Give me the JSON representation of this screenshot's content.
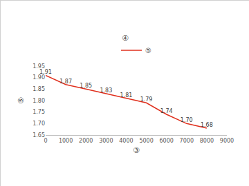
{
  "chart_data": {
    "type": "line",
    "title": "④",
    "x_label": "③",
    "y_label": "⑤",
    "x": [
      0,
      1000,
      2000,
      3000,
      4000,
      5000,
      6000,
      7000,
      8000
    ],
    "series": [
      {
        "name": "⑤",
        "color": "#e0301e",
        "values": [
          1.91,
          1.87,
          1.85,
          1.83,
          1.81,
          1.79,
          1.74,
          1.7,
          1.68
        ],
        "value_labels": [
          "1.91",
          "1.87",
          "1.85",
          "1.83",
          "1.81",
          "1.79",
          "1.74",
          "1.70",
          "1.68"
        ]
      }
    ],
    "xlim": [
      0,
      9000
    ],
    "xticks": [
      0,
      1000,
      2000,
      3000,
      4000,
      5000,
      6000,
      7000,
      8000,
      9000
    ],
    "ylim": [
      1.65,
      1.95
    ],
    "yticks": [
      1.65,
      {
        "value": 1.7,
        "label": "1.70"
      },
      1.75,
      {
        "value": 1.8,
        "label": "1.80"
      },
      1.85,
      {
        "value": 1.9,
        "label": "1.90"
      },
      1.95
    ],
    "grid": false,
    "legend": "top",
    "data_labels": true
  }
}
